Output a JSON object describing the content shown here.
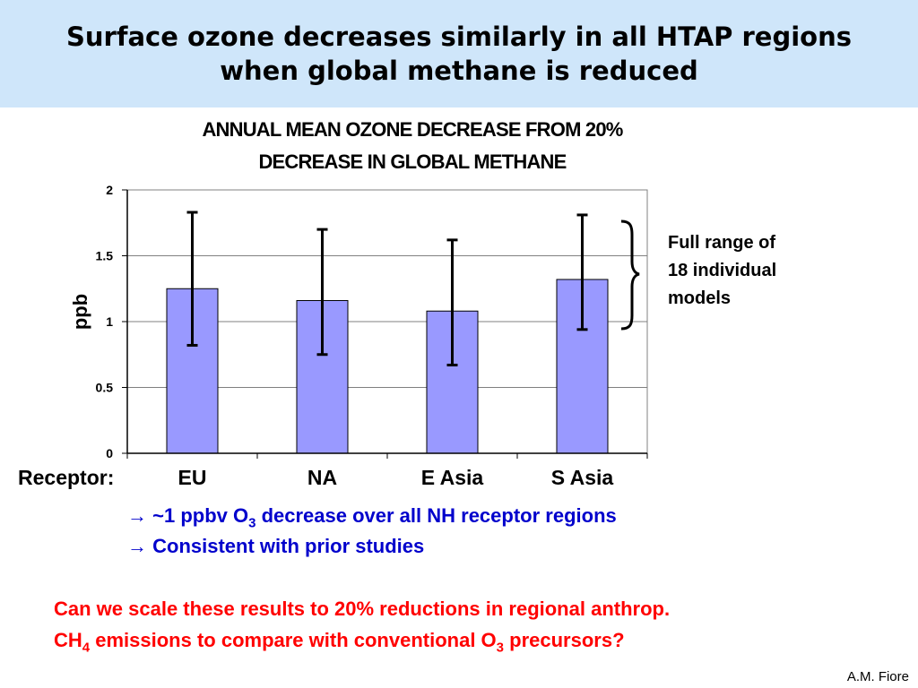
{
  "slide": {
    "title_line1": "Surface ozone decreases similarly in all HTAP regions",
    "title_line2": "when global methane is reduced",
    "chart_title_line1": "ANNUAL MEAN OZONE DECREASE FROM 20%",
    "chart_title_line2": "DECREASE IN GLOBAL METHANE",
    "annotation_line1": "Full range of",
    "annotation_line2": "18 individual",
    "annotation_line3": "models",
    "receptor_label": "Receptor:",
    "note1_arrow": "→",
    "note1_pre": "~1 ppbv O",
    "note1_sub": "3",
    "note1_post": " decrease over all NH receptor regions",
    "note2_arrow": "→",
    "note2_text": "Consistent with prior studies",
    "question_line1": "Can we scale these results to 20% reductions in regional anthrop.",
    "question_line2_a": "CH",
    "question_line2_sub1": "4",
    "question_line2_b": " emissions to compare with conventional O",
    "question_line2_sub2": "3",
    "question_line2_c": " precursors?",
    "credit": "A.M. Fiore",
    "colors": {
      "title_band": "#cfe6fa",
      "bar_fill": "#9999ff",
      "note_blue": "#0000cc",
      "question_red": "#ff0000"
    }
  },
  "chart_data": {
    "type": "bar",
    "title": "ANNUAL MEAN OZONE DECREASE FROM 20% DECREASE IN GLOBAL METHANE",
    "xlabel": "Receptor:",
    "ylabel": "ppb",
    "categories": [
      "EU",
      "NA",
      "E Asia",
      "S Asia"
    ],
    "values": [
      1.25,
      1.16,
      1.08,
      1.32
    ],
    "error_low": [
      0.82,
      0.75,
      0.67,
      0.94
    ],
    "error_high": [
      1.83,
      1.7,
      1.62,
      1.81
    ],
    "ylim": [
      0,
      2
    ],
    "yticks": [
      "0",
      "0.5",
      "1",
      "1.5",
      "2"
    ],
    "grid": true,
    "legend": "none"
  }
}
